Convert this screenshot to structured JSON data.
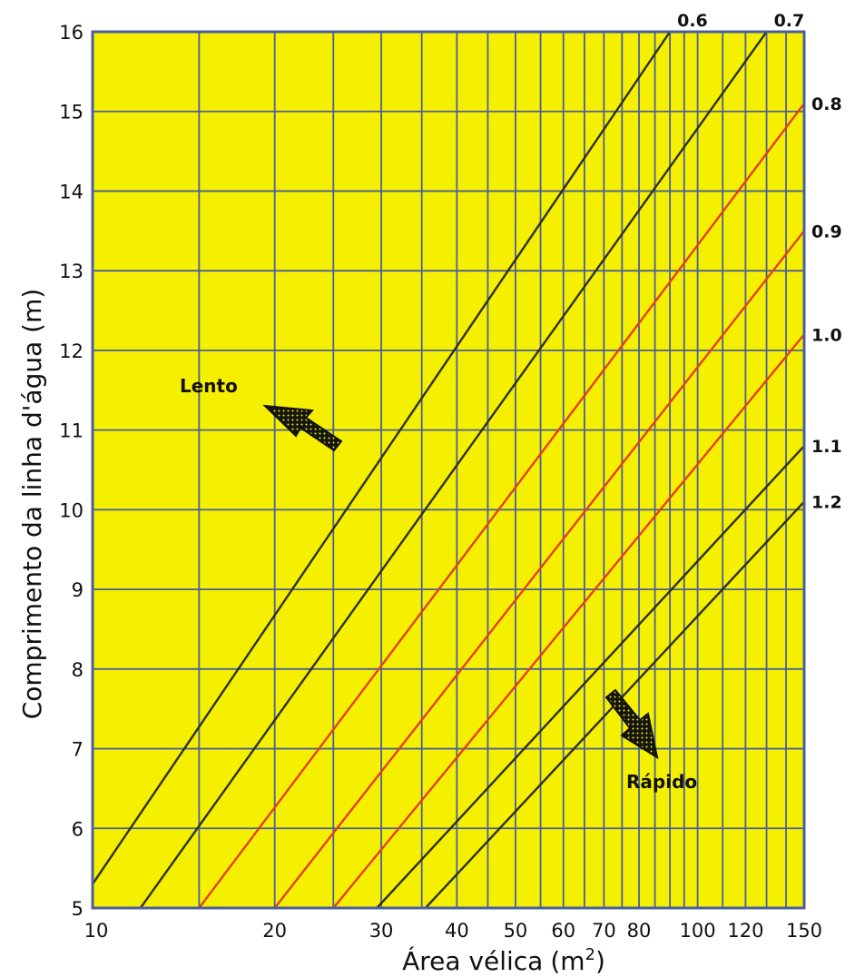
{
  "chart_data": {
    "type": "line",
    "xlabel": "Área vélica",
    "xlabel_unit": "(m",
    "xlabel_sup": "2",
    "xlabel_close": ")",
    "ylabel": "Comprimento da linha d'água (m)",
    "x_scale": "log",
    "xlim": [
      10,
      150
    ],
    "ylim": [
      5,
      16
    ],
    "grid": true,
    "background_color": "#f5f000",
    "grid_color": "#4a5f9a",
    "x_grid": [
      10,
      15,
      20,
      25,
      30,
      35,
      40,
      45,
      50,
      55,
      60,
      65,
      70,
      75,
      80,
      85,
      90,
      95,
      100,
      110,
      120,
      130,
      140,
      150
    ],
    "x_ticks": [
      {
        "value": 10,
        "label": "10"
      },
      {
        "value": 20,
        "label": "20"
      },
      {
        "value": 30,
        "label": "30"
      },
      {
        "value": 40,
        "label": "40"
      },
      {
        "value": 50,
        "label": "50"
      },
      {
        "value": 60,
        "label": "60"
      },
      {
        "value": 70,
        "label": "70"
      },
      {
        "value": 80,
        "label": "80"
      },
      {
        "value": 100,
        "label": "100"
      },
      {
        "value": 120,
        "label": "120"
      },
      {
        "value": 150,
        "label": "150"
      }
    ],
    "y_ticks": [
      {
        "value": 5,
        "label": "5"
      },
      {
        "value": 6,
        "label": "6"
      },
      {
        "value": 7,
        "label": "7"
      },
      {
        "value": 8,
        "label": "8"
      },
      {
        "value": 9,
        "label": "9"
      },
      {
        "value": 10,
        "label": "10"
      },
      {
        "value": 11,
        "label": "11"
      },
      {
        "value": 12,
        "label": "12"
      },
      {
        "value": 13,
        "label": "13"
      },
      {
        "value": 14,
        "label": "14"
      },
      {
        "value": 15,
        "label": "15"
      },
      {
        "value": 16,
        "label": "16"
      }
    ],
    "series": [
      {
        "name": "0.6",
        "color": "#2f2f1c",
        "points": [
          [
            10,
            5.3
          ],
          [
            90,
            16
          ]
        ]
      },
      {
        "name": "0.7",
        "color": "#2f2f1c",
        "points": [
          [
            12,
            5
          ],
          [
            130,
            16
          ]
        ]
      },
      {
        "name": "0.8",
        "color": "#e2401c",
        "points": [
          [
            15,
            5
          ],
          [
            150,
            15.1
          ]
        ]
      },
      {
        "name": "0.9",
        "color": "#e2401c",
        "points": [
          [
            20,
            5
          ],
          [
            150,
            13.5
          ]
        ]
      },
      {
        "name": "1.0",
        "color": "#e2401c",
        "points": [
          [
            25,
            5
          ],
          [
            150,
            12.2
          ]
        ]
      },
      {
        "name": "1.1",
        "color": "#2f2f1c",
        "points": [
          [
            29.5,
            5
          ],
          [
            150,
            10.8
          ]
        ]
      },
      {
        "name": "1.2",
        "color": "#2f2f1c",
        "points": [
          [
            35.5,
            5
          ],
          [
            150,
            10.1
          ]
        ]
      }
    ],
    "annotations": [
      {
        "text": "Lento",
        "x": 14.5,
        "y": 11.4,
        "arrow": "up-left"
      },
      {
        "text": "Rápido",
        "x": 100,
        "y": 6.8,
        "arrow": "down-right"
      }
    ]
  }
}
